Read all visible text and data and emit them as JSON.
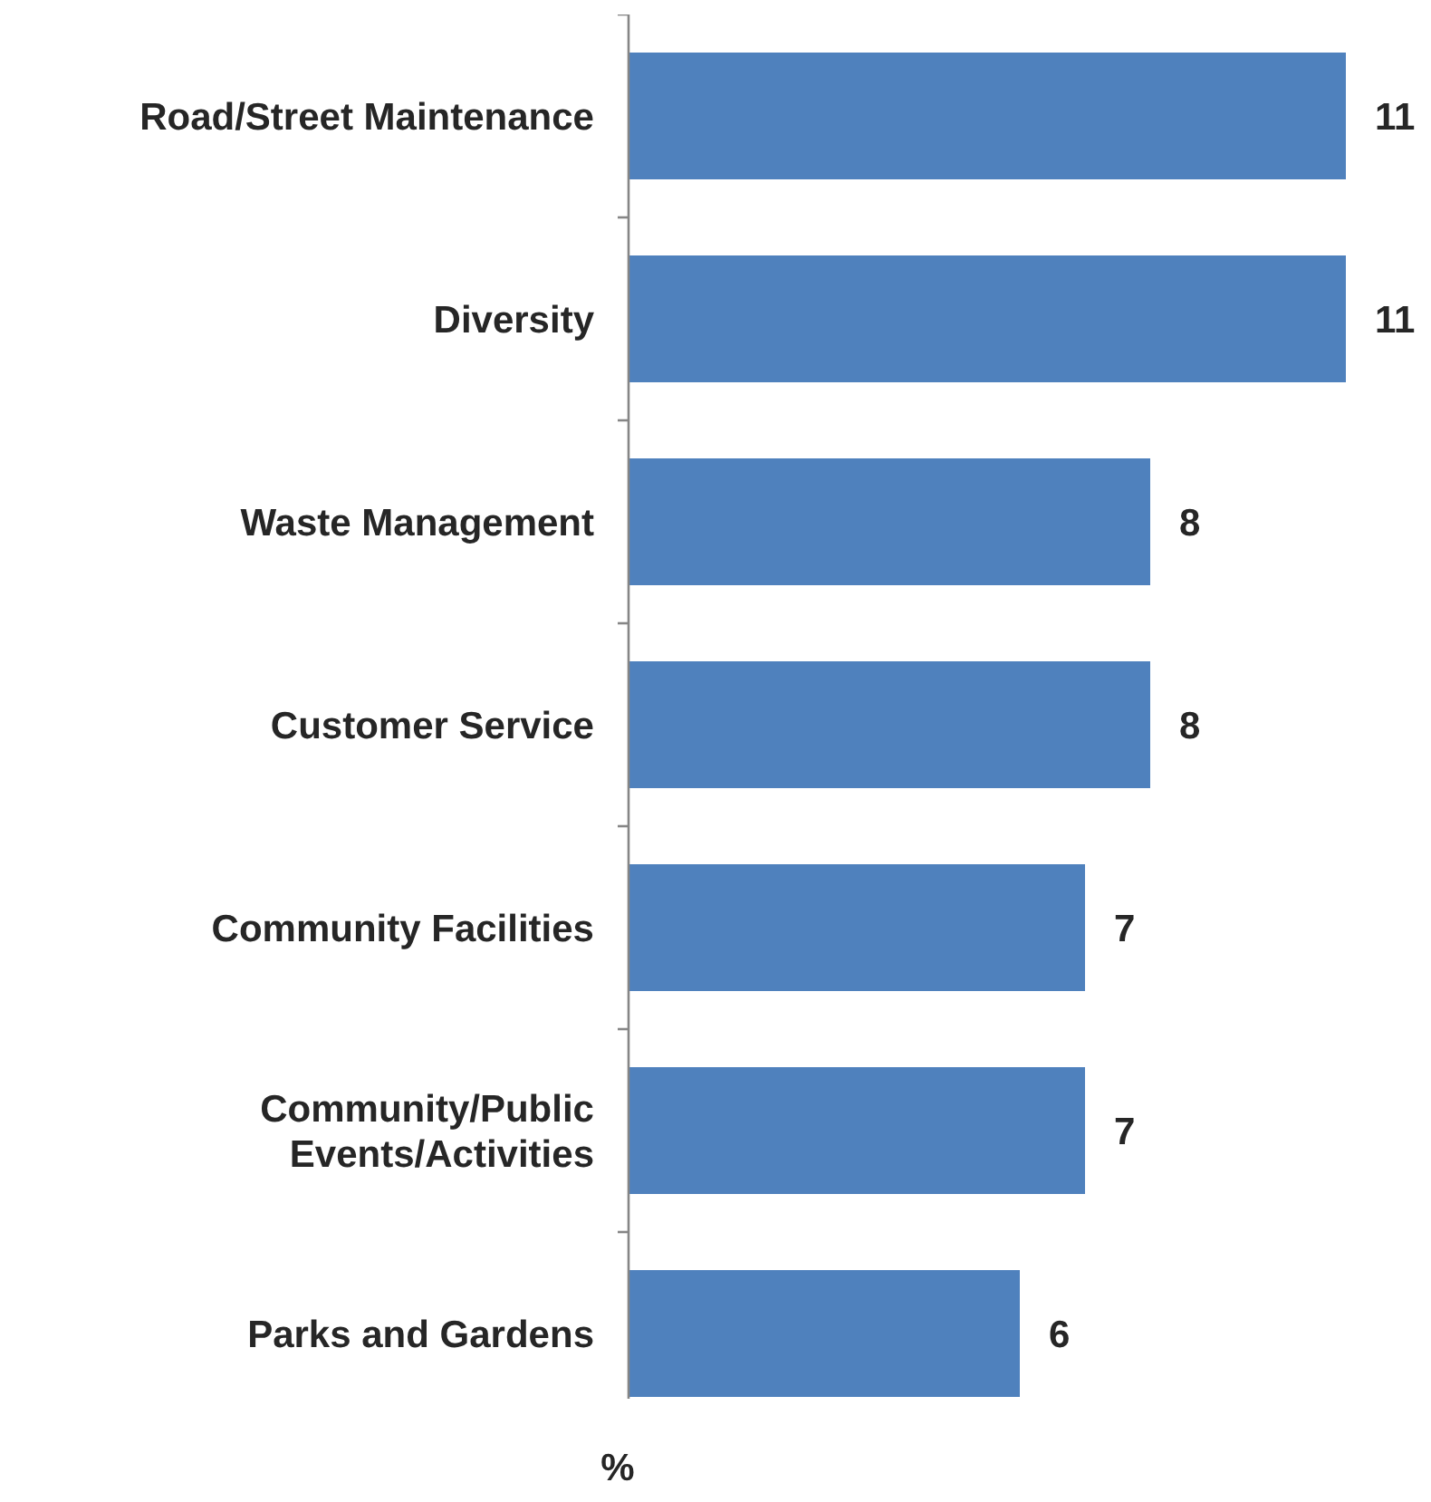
{
  "chart_data": {
    "type": "bar",
    "orientation": "horizontal",
    "xlabel": "%",
    "categories": [
      "Road/Street Maintenance",
      "Diversity",
      "Waste Management",
      "Customer Service",
      "Community Facilities",
      "Community/Public Events/Activities",
      "Parks and Gardens"
    ],
    "values": [
      11,
      11,
      8,
      8,
      7,
      7,
      6
    ],
    "color": "#4f81bd",
    "data_labels": true
  }
}
